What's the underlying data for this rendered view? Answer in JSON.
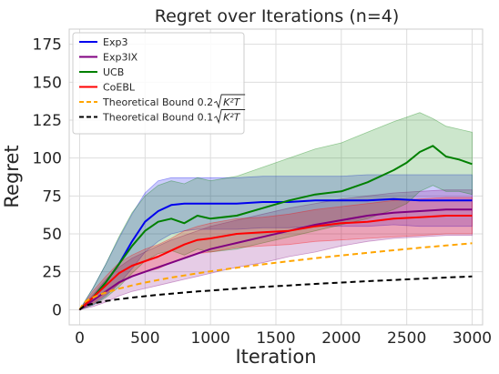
{
  "chart_data": {
    "type": "line",
    "title": "Regret over Iterations (n=4)",
    "xlabel": "Iteration",
    "ylabel": "Regret",
    "xlim": [
      -80,
      3080
    ],
    "ylim": [
      -10,
      185
    ],
    "xticks": [
      0,
      500,
      1000,
      1500,
      2000,
      2500,
      3000
    ],
    "xtick_labels": [
      "0",
      "500",
      "1000",
      "1500",
      "2000",
      "2500",
      "3000"
    ],
    "yticks": [
      0,
      25,
      50,
      75,
      100,
      125,
      150,
      175
    ],
    "ytick_labels": [
      "0",
      "25",
      "50",
      "75",
      "100",
      "125",
      "150",
      "175"
    ],
    "grid": true,
    "legend_position": "top-left",
    "series": [
      {
        "name": "Exp3",
        "color": "#0000ee",
        "style": "solid",
        "band_opacity": 0.2,
        "x": [
          0,
          100,
          200,
          300,
          400,
          500,
          600,
          700,
          800,
          900,
          1000,
          1200,
          1400,
          1600,
          1800,
          2000,
          2200,
          2400,
          2600,
          2800,
          3000
        ],
        "y": [
          0,
          8,
          18,
          30,
          45,
          58,
          65,
          69,
          70,
          70,
          70,
          70,
          71,
          71,
          72,
          72,
          72,
          73,
          72,
          72,
          72
        ],
        "upper": [
          0,
          14,
          30,
          47,
          63,
          77,
          85,
          87,
          87,
          87,
          87,
          87,
          88,
          88,
          88,
          88,
          89,
          89,
          89,
          89,
          89
        ],
        "lower": [
          0,
          3,
          9,
          17,
          27,
          38,
          45,
          50,
          52,
          53,
          53,
          53,
          54,
          54,
          55,
          55,
          55,
          56,
          55,
          55,
          55
        ]
      },
      {
        "name": "Exp3IX",
        "color": "#800080",
        "style": "solid",
        "band_opacity": 0.2,
        "x": [
          0,
          100,
          200,
          300,
          400,
          500,
          600,
          700,
          800,
          900,
          1000,
          1200,
          1400,
          1600,
          1800,
          2000,
          2200,
          2400,
          2600,
          2800,
          3000
        ],
        "y": [
          0,
          6,
          12,
          18,
          22,
          25,
          28,
          31,
          34,
          37,
          40,
          44,
          48,
          52,
          56,
          59,
          62,
          64,
          65,
          66,
          66
        ],
        "upper": [
          0,
          10,
          20,
          28,
          34,
          38,
          42,
          46,
          49,
          52,
          55,
          59,
          63,
          67,
          70,
          73,
          75,
          77,
          78,
          79,
          79
        ],
        "lower": [
          0,
          2,
          5,
          9,
          12,
          14,
          16,
          18,
          20,
          22,
          24,
          28,
          31,
          35,
          38,
          42,
          45,
          47,
          48,
          49,
          49
        ]
      },
      {
        "name": "UCB",
        "color": "#008000",
        "style": "solid",
        "band_opacity": 0.2,
        "x": [
          0,
          100,
          200,
          300,
          400,
          500,
          600,
          700,
          800,
          900,
          1000,
          1200,
          1400,
          1600,
          1800,
          2000,
          2200,
          2400,
          2500,
          2600,
          2700,
          2800,
          2900,
          3000
        ],
        "y": [
          0,
          8,
          18,
          30,
          42,
          52,
          58,
          60,
          57,
          62,
          60,
          62,
          67,
          72,
          76,
          78,
          84,
          92,
          97,
          104,
          108,
          101,
          99,
          96
        ],
        "upper": [
          0,
          14,
          30,
          48,
          64,
          75,
          82,
          85,
          83,
          87,
          85,
          88,
          94,
          100,
          106,
          110,
          117,
          124,
          127,
          130,
          126,
          121,
          119,
          117
        ],
        "lower": [
          0,
          3,
          8,
          15,
          24,
          32,
          37,
          39,
          36,
          40,
          38,
          40,
          44,
          48,
          52,
          56,
          60,
          66,
          70,
          78,
          82,
          78,
          78,
          76
        ]
      },
      {
        "name": "CoEBL",
        "color": "#ff0000",
        "style": "solid",
        "band_opacity": 0.2,
        "x": [
          0,
          100,
          200,
          300,
          400,
          500,
          600,
          700,
          800,
          900,
          1000,
          1200,
          1400,
          1600,
          1800,
          2000,
          2200,
          2400,
          2600,
          2800,
          3000
        ],
        "y": [
          0,
          8,
          16,
          24,
          29,
          32,
          35,
          39,
          43,
          46,
          47,
          50,
          51,
          52,
          55,
          57,
          58,
          60,
          61,
          62,
          62
        ],
        "upper": [
          0,
          12,
          22,
          31,
          36,
          40,
          43,
          47,
          52,
          55,
          57,
          60,
          61,
          63,
          66,
          68,
          70,
          72,
          73,
          74,
          74
        ],
        "lower": [
          0,
          4,
          10,
          17,
          22,
          25,
          27,
          31,
          34,
          37,
          38,
          41,
          42,
          43,
          45,
          46,
          47,
          48,
          49,
          50,
          50
        ]
      },
      {
        "name": "Theoretical Bound 0.2√(K²T)",
        "legend_prefix": "Theoretical Bound 0.2",
        "legend_sqrt": "K²T",
        "color": "#ffa500",
        "style": "dashed",
        "formula": "0.2*sqrt(16*T)",
        "x": [
          0,
          30,
          60,
          100,
          150,
          200,
          300,
          400,
          500,
          600,
          700,
          800,
          900,
          1000,
          1200,
          1400,
          1600,
          1800,
          2000,
          2200,
          2400,
          2600,
          2800,
          3000
        ],
        "y": [
          0,
          4.4,
          6.2,
          8.0,
          9.8,
          11.3,
          13.9,
          16.0,
          17.9,
          19.6,
          21.2,
          22.6,
          24.0,
          25.3,
          27.7,
          29.9,
          32.0,
          33.9,
          35.8,
          37.5,
          39.2,
          40.8,
          42.3,
          43.8
        ]
      },
      {
        "name": "Theoretical Bound 0.1√(K²T)",
        "legend_prefix": "Theoretical Bound 0.1",
        "legend_sqrt": "K²T",
        "color": "#000000",
        "style": "dashed",
        "formula": "0.1*sqrt(16*T)",
        "x": [
          0,
          30,
          60,
          100,
          150,
          200,
          300,
          400,
          500,
          600,
          700,
          800,
          900,
          1000,
          1200,
          1400,
          1600,
          1800,
          2000,
          2200,
          2400,
          2600,
          2800,
          3000
        ],
        "y": [
          0,
          2.2,
          3.1,
          4.0,
          4.9,
          5.7,
          6.9,
          8.0,
          8.9,
          9.8,
          10.6,
          11.3,
          12.0,
          12.6,
          13.9,
          15.0,
          16.0,
          17.0,
          17.9,
          18.8,
          19.6,
          20.4,
          21.2,
          21.9
        ]
      }
    ]
  }
}
